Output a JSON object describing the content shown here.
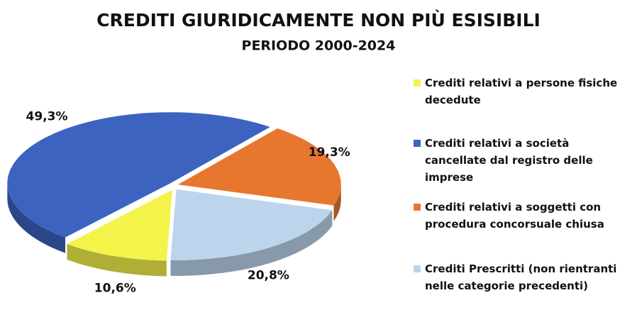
{
  "chart_data": {
    "type": "pie3d",
    "title": "CREDITI GIURIDICAMENTE NON PIÙ ESISIBILI",
    "subtitle": "PERIODO 2000-2024",
    "categories": [
      "Crediti relativi a persone fisiche decedute",
      "Crediti relativi a società cancellate dal registro delle imprese",
      "Crediti relativi a soggetti con procedura concorsuale chiusa",
      "Crediti Prescritti (non rientranti nelle categorie precedenti)"
    ],
    "values": [
      10.6,
      49.3,
      19.3,
      20.8
    ],
    "value_labels": [
      "10,6%",
      "49,3%",
      "19,3%",
      "20,8%"
    ],
    "colors": [
      "#f3f34a",
      "#3b63bf",
      "#e7772f",
      "#bcd4ec"
    ],
    "legend": "right"
  }
}
